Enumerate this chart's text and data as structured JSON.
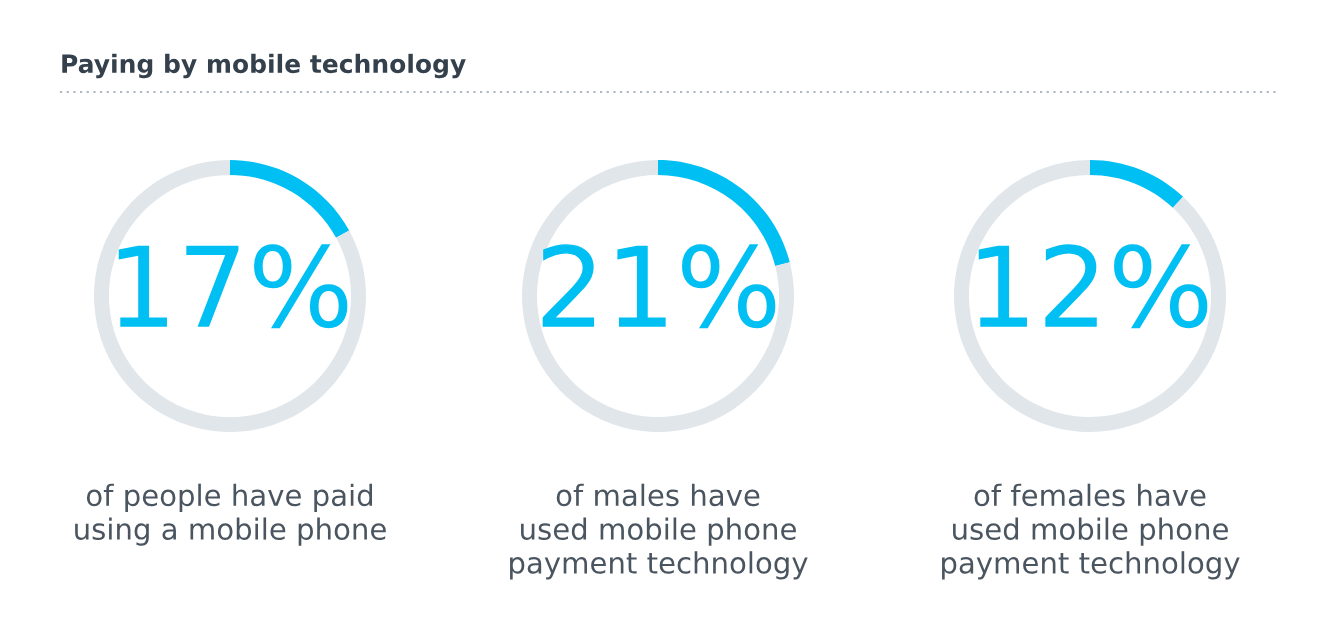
{
  "chart_data": [
    {
      "type": "donut",
      "title": "Paying by mobile technology",
      "categories": [
        null,
        null
      ],
      "values": [
        17,
        83
      ],
      "colors": [
        "#00bff3",
        "#e1e6eb"
      ],
      "value_labels": [
        "17%",
        null
      ],
      "annotations": [
        "of people have paid\nusing a mobile phone"
      ]
    },
    {
      "type": "donut",
      "categories": [
        null,
        null
      ],
      "values": [
        21,
        79
      ],
      "colors": [
        "#00bff3",
        "#e1e6eb"
      ],
      "value_labels": [
        "21%",
        null
      ],
      "annotations": [
        "of males have\nused mobile phone\npayment technology"
      ]
    },
    {
      "type": "donut",
      "categories": [
        null,
        null
      ],
      "values": [
        12,
        88
      ],
      "colors": [
        "#00bff3",
        "#e1e6eb"
      ],
      "value_labels": [
        "12%",
        null
      ],
      "annotations": [
        "of females have\nused mobile phone\npayment technology"
      ]
    }
  ]
}
